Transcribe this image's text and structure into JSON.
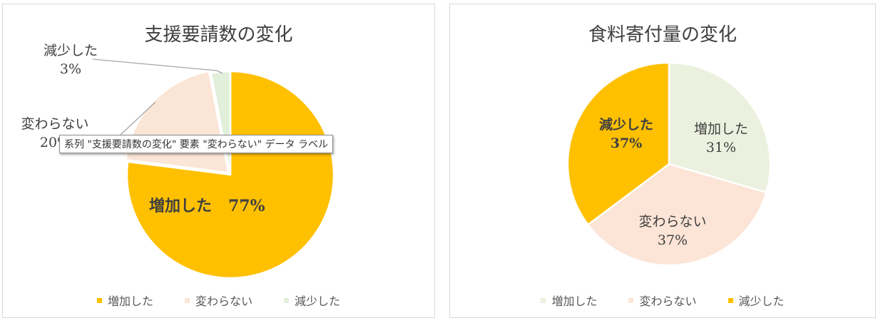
{
  "chart_data": [
    {
      "type": "pie",
      "title": "支援要請数の変化",
      "categories": [
        "増加した",
        "変わらない",
        "減少した"
      ],
      "values": [
        77,
        20,
        3
      ],
      "colors": [
        "#ffc000",
        "#fbe5d6",
        "#e2efda"
      ],
      "data_labels": [
        {
          "name": "増加した",
          "value": "77%"
        },
        {
          "name": "変わらない",
          "value": "20%"
        },
        {
          "name": "減少した",
          "value": "3%"
        }
      ],
      "legend": "bottom",
      "tooltip": "系列 \"支援要請数の変化\" 要素 \"変わらない\" データ ラベル"
    },
    {
      "type": "pie",
      "title": "食料寄付量の変化",
      "categories": [
        "増加した",
        "変わらない",
        "減少した"
      ],
      "values": [
        31,
        37,
        37
      ],
      "colors": [
        "#ebf1de",
        "#fce4d6",
        "#ffc000"
      ],
      "data_labels": [
        {
          "name": "増加した",
          "value": "31%"
        },
        {
          "name": "変わらない",
          "value": "37%"
        },
        {
          "name": "減少した",
          "value": "37%"
        }
      ],
      "legend": "bottom"
    }
  ]
}
